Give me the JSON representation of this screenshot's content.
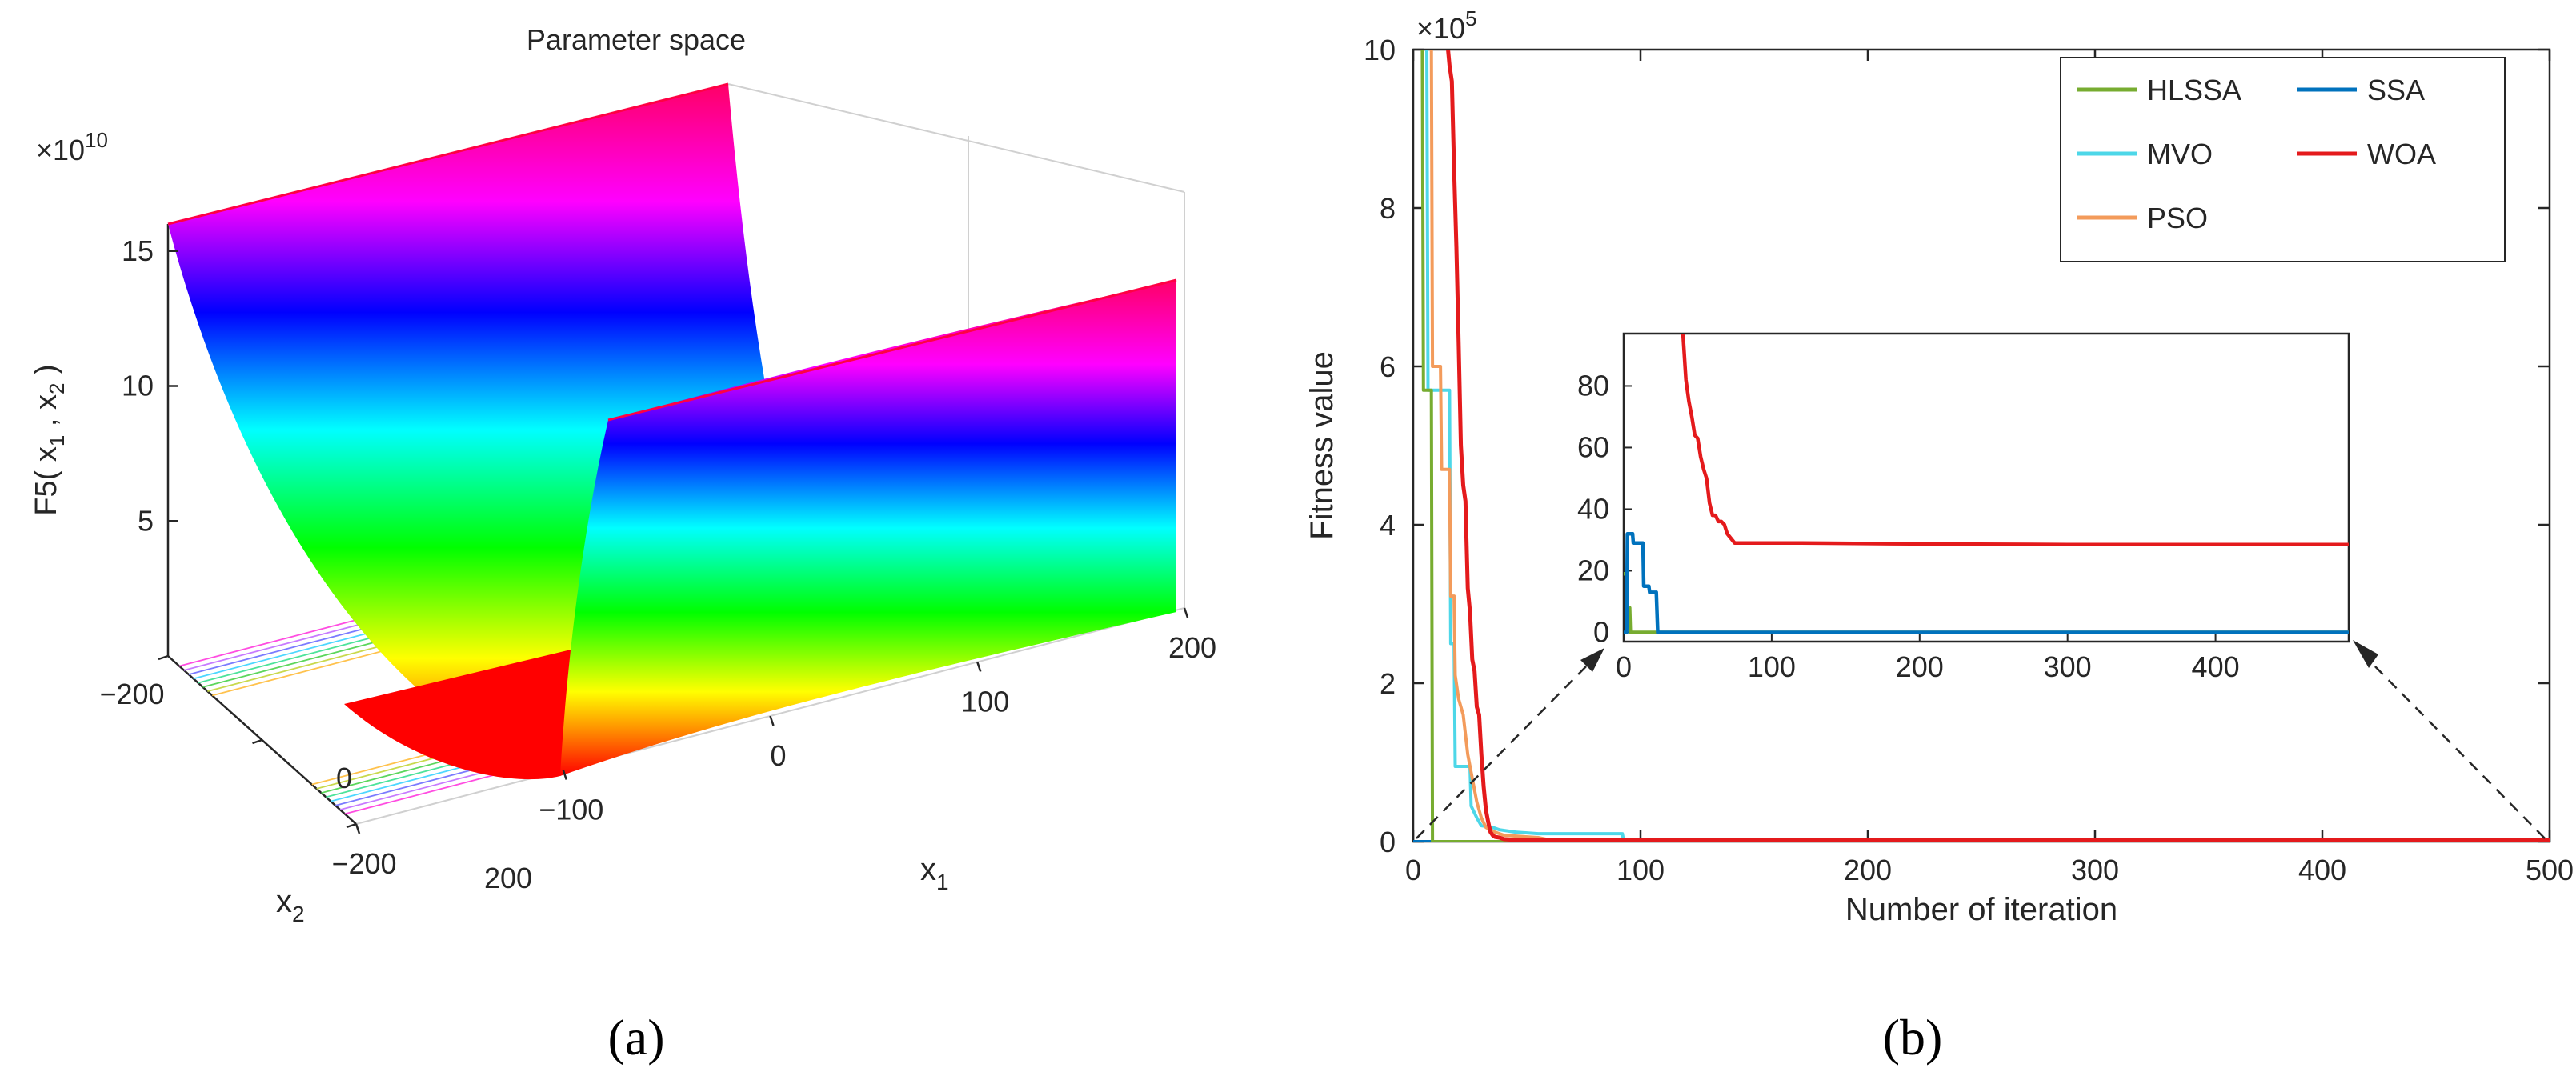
{
  "chart_data": [
    {
      "type": "surface3d",
      "panel_label": "(a)",
      "title": "Parameter space",
      "zlabel": "F5( x1 , x2 )",
      "zlabel_parts": {
        "base": "F5( x",
        "s1": "1",
        "mid": " , x",
        "s2": "2",
        "end": " )"
      },
      "z_multiplier": {
        "prefix": "×10",
        "exp": "10"
      },
      "z_ticks": [
        "5",
        "10",
        "15"
      ],
      "z_tick_values": [
        5,
        10,
        15
      ],
      "zlim": [
        0,
        16
      ],
      "x1_label": {
        "base": "x",
        "sub": "1"
      },
      "x2_label": {
        "base": "x",
        "sub": "2"
      },
      "x1_ticks": [
        "−200",
        "−100",
        "0",
        "100",
        "200"
      ],
      "x1_tick_values": [
        -200,
        -100,
        0,
        100,
        200
      ],
      "x2_ticks": [
        "−200",
        "0",
        "200"
      ],
      "x2_tick_values": [
        -200,
        0,
        200
      ],
      "x1_range": [
        -200,
        200
      ],
      "x2_range": [
        -200,
        200
      ],
      "colormap": "hsv",
      "base_contours": true
    },
    {
      "type": "line",
      "panel_label": "(b)",
      "xlabel": "Number of iteration",
      "ylabel": "Fitness value",
      "y_multiplier": {
        "prefix": "×10",
        "exp": "5"
      },
      "xlim": [
        0,
        500
      ],
      "ylim": [
        0,
        10
      ],
      "x_ticks": [
        0,
        100,
        200,
        300,
        400,
        500
      ],
      "y_ticks": [
        0,
        2,
        4,
        6,
        8,
        10
      ],
      "legend_position": "top-right",
      "series": [
        {
          "name": "HLSSA",
          "color": "#77ac30",
          "x": [
            0,
            4,
            4.5,
            8,
            8.5,
            500
          ],
          "y": [
            10.1,
            10.1,
            5.7,
            5.7,
            0,
            0
          ]
        },
        {
          "name": "SSA",
          "color": "#0072bd",
          "x": [
            0,
            500
          ],
          "y": [
            0,
            0
          ]
        },
        {
          "name": "MVO",
          "color": "#4dd7e8",
          "x": [
            0,
            6,
            6.5,
            16,
            16.5,
            18,
            18.5,
            25,
            25.5,
            28,
            30,
            35,
            38,
            45,
            55,
            92,
            92.5,
            185
          ],
          "y": [
            10.1,
            10.1,
            5.7,
            5.7,
            2.5,
            2.5,
            0.95,
            0.95,
            0.45,
            0.3,
            0.2,
            0.18,
            0.15,
            0.12,
            0.1,
            0.1,
            0.02,
            0.02
          ]
        },
        {
          "name": "WOA",
          "color": "#e41a1c",
          "x": [
            15,
            16,
            17,
            18,
            19,
            20,
            21,
            22,
            23,
            24,
            25,
            26,
            27,
            28,
            29,
            30,
            31,
            32,
            33,
            34,
            35,
            36,
            38,
            40,
            45,
            500
          ],
          "y": [
            10.1,
            9.8,
            9.6,
            8.5,
            7.5,
            6.3,
            5.0,
            4.5,
            4.3,
            3.2,
            2.9,
            2.3,
            2.15,
            1.7,
            1.6,
            1.1,
            0.7,
            0.4,
            0.25,
            0.12,
            0.08,
            0.06,
            0.05,
            0.03,
            0.02,
            0.02
          ]
        },
        {
          "name": "PSO",
          "color": "#f39b5b",
          "x": [
            0,
            8,
            8.5,
            12,
            12.5,
            16,
            16.5,
            18,
            18.5,
            20,
            22,
            24,
            26,
            28,
            30,
            32,
            36,
            40,
            55,
            60
          ],
          "y": [
            10.1,
            10.1,
            6.0,
            6.0,
            4.7,
            4.7,
            3.1,
            3.1,
            2.1,
            1.8,
            1.6,
            1.1,
            0.8,
            0.5,
            0.3,
            0.18,
            0.12,
            0.08,
            0.05,
            0.02
          ]
        }
      ],
      "inset": {
        "xlim": [
          0,
          490
        ],
        "ylim": [
          -3,
          97
        ],
        "x_ticks": [
          0,
          100,
          200,
          300,
          400
        ],
        "y_ticks": [
          0,
          20,
          40,
          60,
          80
        ],
        "series": [
          {
            "name": "HLSSA",
            "color": "#77ac30",
            "x": [
              0,
              2,
              2.5,
              4,
              4.5,
              490
            ],
            "y": [
              19,
              19,
              8,
              8,
              0,
              0
            ]
          },
          {
            "name": "SSA",
            "color": "#0072bd",
            "x": [
              0,
              2,
              2.5,
              6,
              6.5,
              13,
              13.5,
              17,
              17.5,
              22,
              23,
              490
            ],
            "y": [
              0,
              0,
              32,
              32,
              29,
              29,
              15,
              15,
              13,
              13,
              0,
              0
            ]
          },
          {
            "name": "WOA",
            "color": "#e41a1c",
            "x": [
              40,
              42,
              44,
              46,
              48,
              50,
              52,
              54,
              56,
              58,
              60,
              62,
              64,
              66,
              68,
              70,
              75,
              80,
              90,
              120,
              180,
              240,
              300,
              400,
              490
            ],
            "y": [
              97,
              82,
              75,
              70,
              64,
              63,
              57,
              53,
              50,
              42,
              38,
              38,
              36,
              36,
              35,
              32,
              29,
              29,
              29,
              29,
              28.8,
              28.6,
              28.5,
              28.5,
              28.5
            ]
          }
        ]
      }
    }
  ]
}
